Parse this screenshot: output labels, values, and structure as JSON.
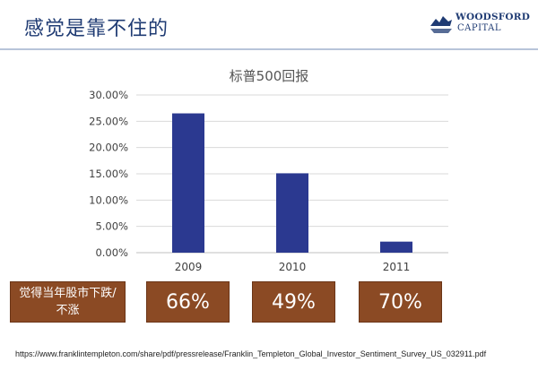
{
  "slide": {
    "title": "感觉是靠不住的"
  },
  "logo": {
    "line1": "WOODSFORD",
    "line2": "CAPITAL"
  },
  "chart_data": {
    "type": "bar",
    "title": "标普500回报",
    "categories": [
      "2009",
      "2010",
      "2011"
    ],
    "values": [
      26.5,
      15.1,
      2.1
    ],
    "ylim": [
      0,
      30
    ],
    "yticks": [
      "0.00%",
      "5.00%",
      "10.00%",
      "15.00%",
      "20.00%",
      "25.00%",
      "30.00%"
    ],
    "grid": true,
    "bar_color": "#2b3990"
  },
  "survey": {
    "label": "觉得当年股市下跌/不涨",
    "values": [
      "66%",
      "49%",
      "70%"
    ],
    "box_color": "#8b4a24"
  },
  "source": "https://www.franklintempleton.com/share/pdf/pressrelease/Franklin_Templeton_Global_Investor_Sentiment_Survey_US_032911.pdf"
}
